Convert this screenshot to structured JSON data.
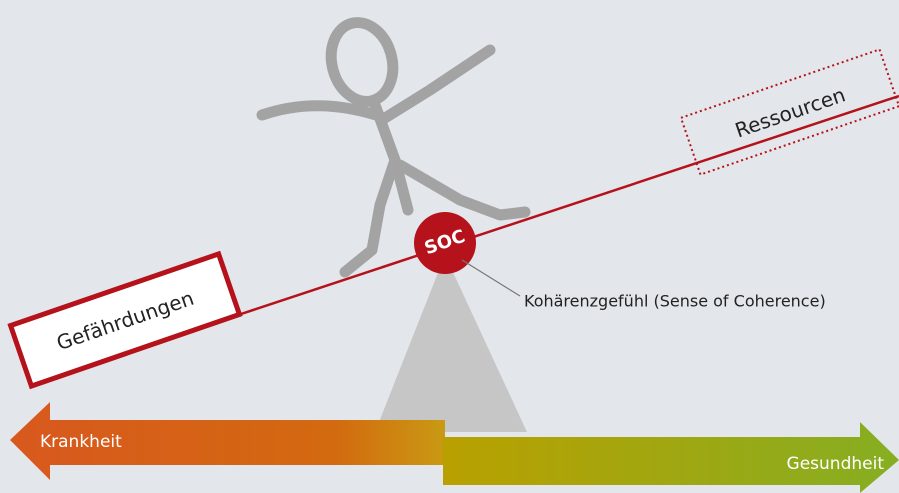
{
  "diagram": {
    "left_box": "Gefährdungen",
    "right_box": "Ressourcen",
    "center": "SOC",
    "center_caption": "Kohärenzgefühl (Sense of Coherence)",
    "left_arrow": "Krankheit",
    "right_arrow": "Gesundheit"
  }
}
